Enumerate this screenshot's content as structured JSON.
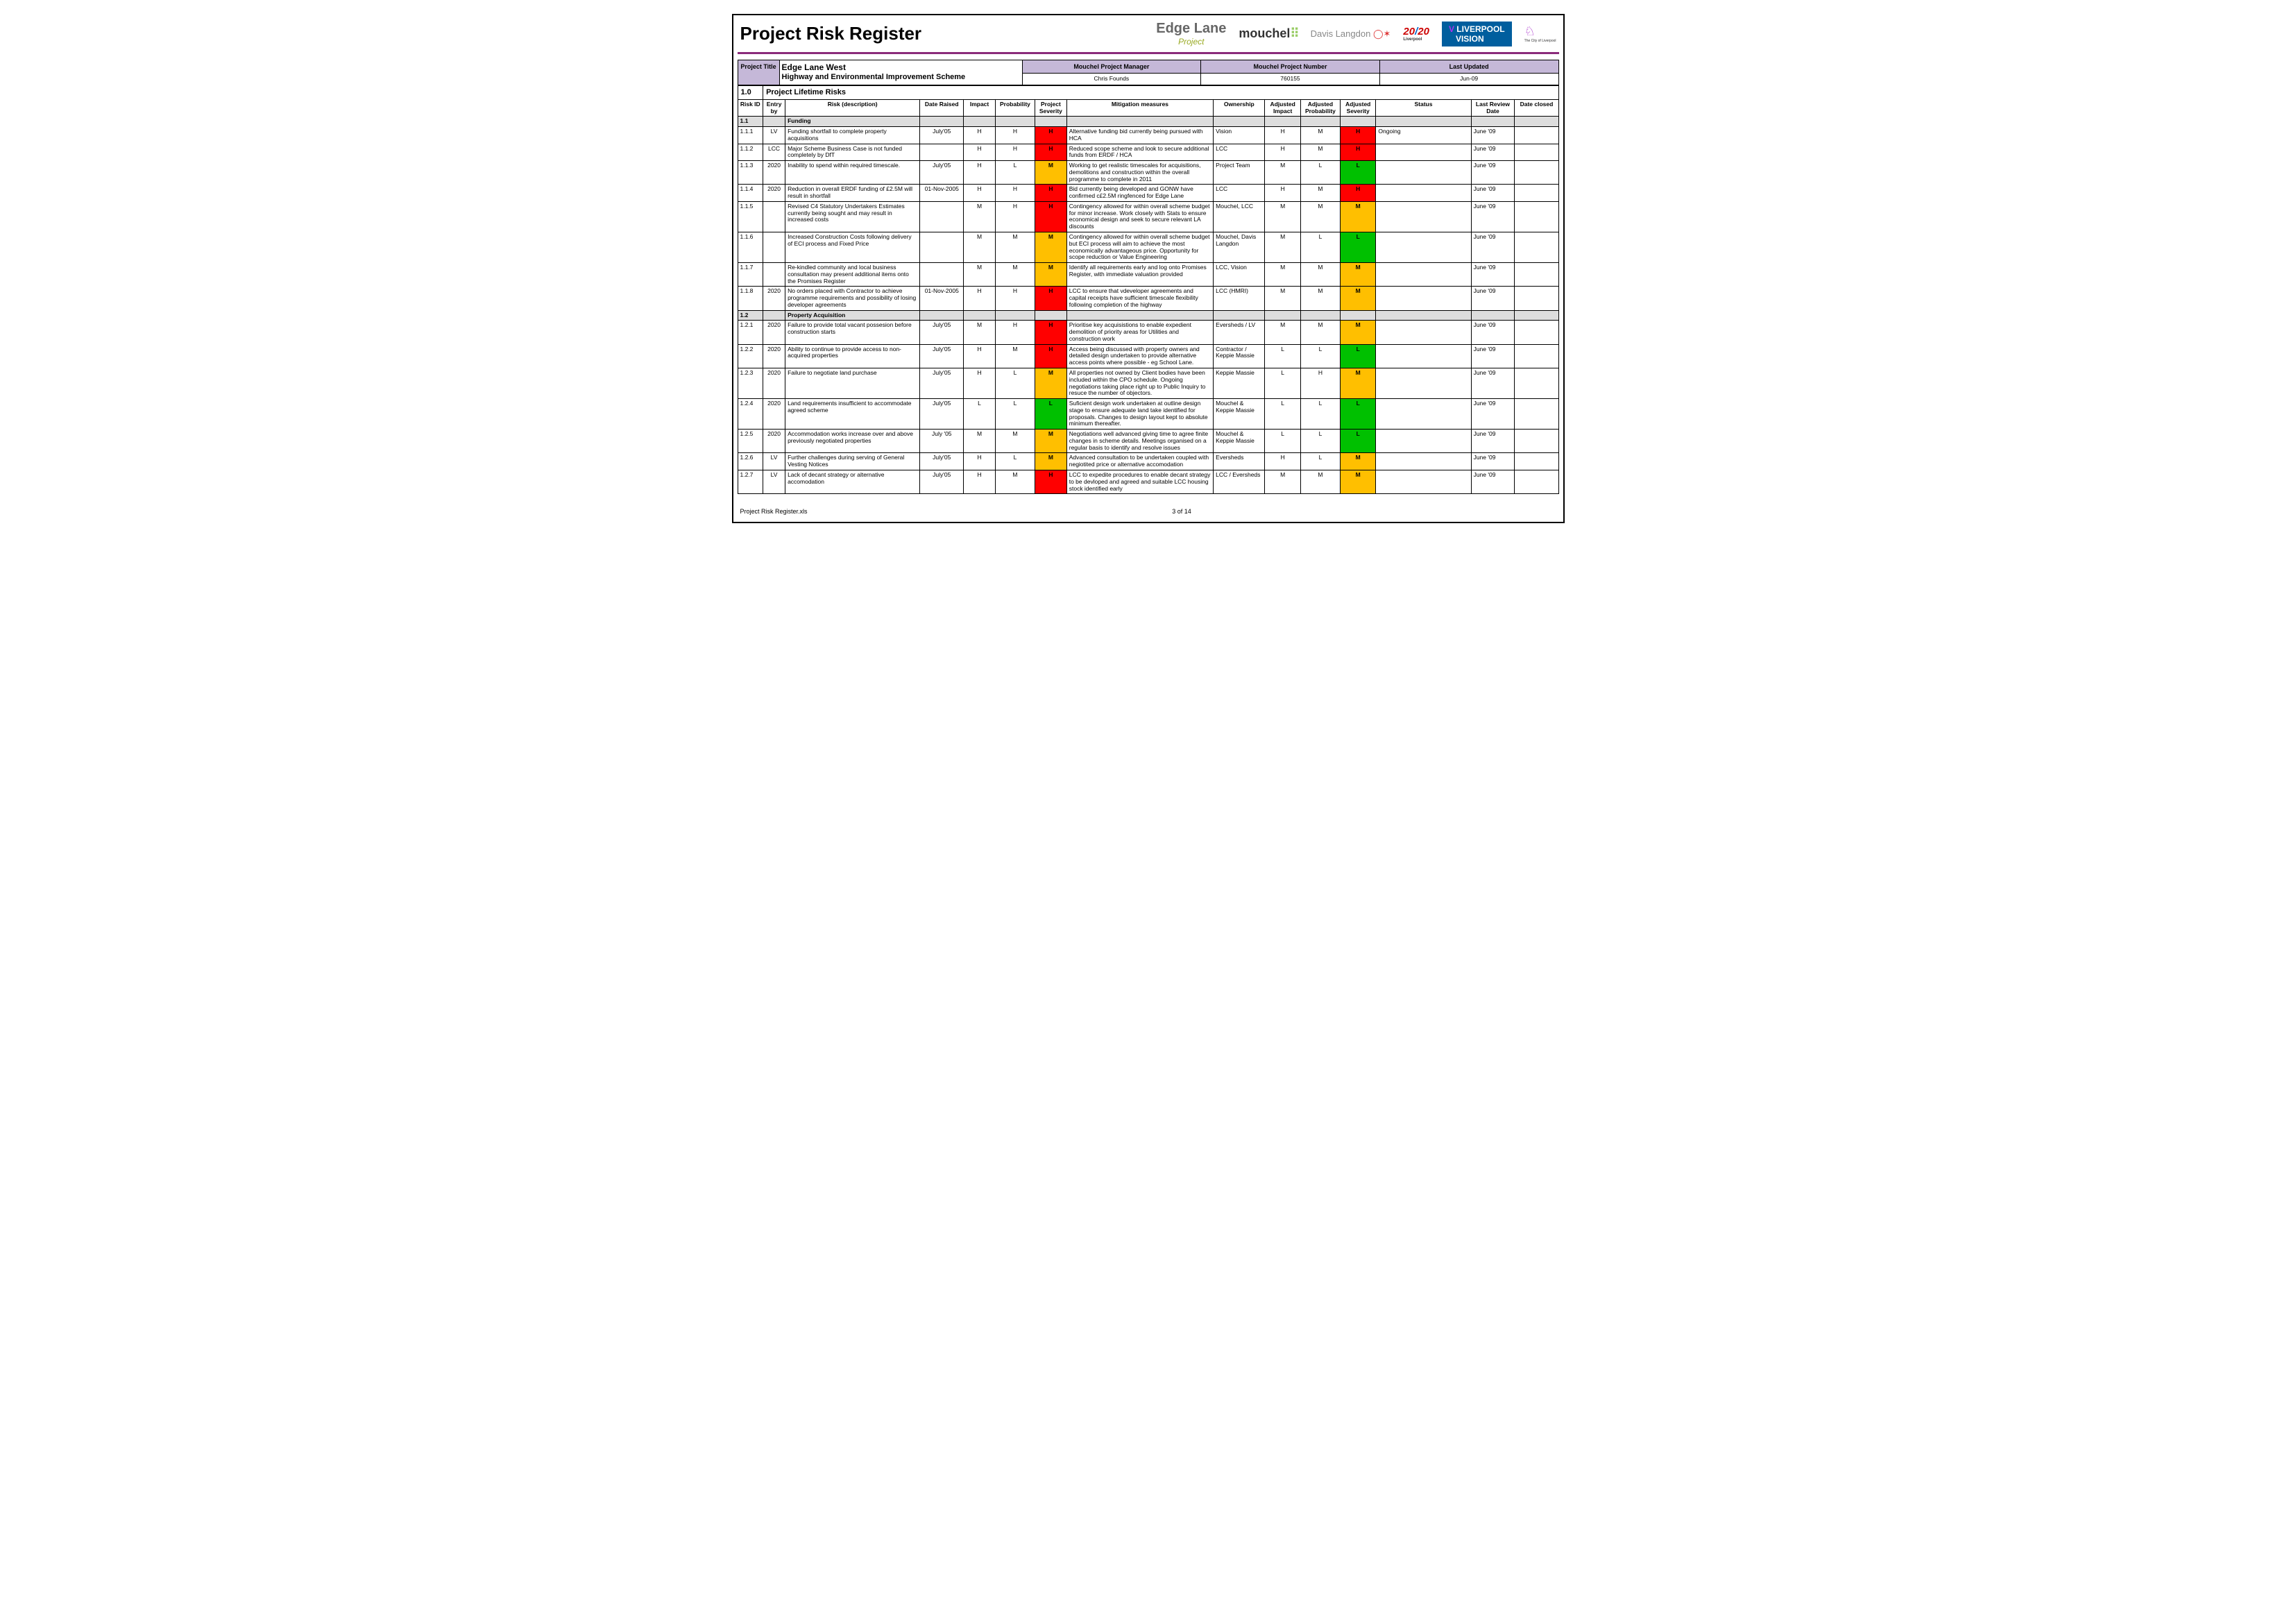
{
  "colors": {
    "H": "#ff0000",
    "M": "#ffbf00",
    "L": "#00c000",
    "header_band": "#c5b8d8",
    "category": "#dddddd"
  },
  "doc_title": "Project Risk Register",
  "logos": {
    "edge_t1": "Edge Lane",
    "edge_t2": "Project",
    "mouchel": "mouchel",
    "davis": "Davis Langdon",
    "yr": "20",
    "yr2": "20",
    "yr_sub": "Liverpool",
    "lv1": "LIVERPOOL",
    "lv2": "VISION",
    "city_sub": "The City of Liverpool"
  },
  "meta_headers": {
    "pt": "Project Title",
    "pm": "Mouchel Project Manager",
    "pn": "Mouchel Project Number",
    "lu": "Last Updated"
  },
  "meta": {
    "title1": "Edge Lane West",
    "title2": "Highway and Environmental Improvement Scheme",
    "pm": "Chris Founds",
    "pn": "760155",
    "lu": "Jun-09"
  },
  "section_num": "1.0",
  "section_title": "Project Lifetime Risks",
  "cols": [
    "Risk ID",
    "Entry by",
    "Risk (description)",
    "Date Raised",
    "Impact",
    "Probability",
    "Project Severity",
    "Mitigation measures",
    "Ownership",
    "Adjusted Impact",
    "Adjusted Probability",
    "Adjusted Severity",
    "Status",
    "Last Review Date",
    "Date closed"
  ],
  "rows": [
    {
      "cat": true,
      "id": "1.1",
      "desc": "Funding"
    },
    {
      "id": "1.1.1",
      "by": "LV",
      "desc": "Funding shortfall to complete property acquisitions",
      "date": "July'05",
      "imp": "H",
      "prob": "H",
      "psev": "H",
      "mit": "Alternative funding bid currently being pursued with HCA",
      "own": "Vision",
      "aimp": "H",
      "aprob": "M",
      "asev": "H",
      "stat": "Ongoing",
      "rev": "June '09",
      "clo": ""
    },
    {
      "id": "1.1.2",
      "by": "LCC",
      "desc": "Major Scheme Business Case is not funded completely by DfT",
      "date": "",
      "imp": "H",
      "prob": "H",
      "psev": "H",
      "mit": "Reduced scope scheme and look to secure additional funds from ERDF / HCA",
      "own": "LCC",
      "aimp": "H",
      "aprob": "M",
      "asev": "H",
      "stat": "",
      "rev": "June '09",
      "clo": ""
    },
    {
      "id": "1.1.3",
      "by": "2020",
      "desc": "Inability to spend within required timescale.",
      "date": "July'05",
      "imp": "H",
      "prob": "L",
      "psev": "M",
      "mit": "Working to get realistic timescales for acquisitions, demolitions and construction within the overall programme to complete in 2011",
      "own": "Project Team",
      "aimp": "M",
      "aprob": "L",
      "asev": "L",
      "stat": "",
      "rev": "June '09",
      "clo": ""
    },
    {
      "id": "1.1.4",
      "by": "2020",
      "desc": "Reduction in overall ERDF funding of £2.5M will result in shortfall",
      "date": "01-Nov-2005",
      "imp": "H",
      "prob": "H",
      "psev": "H",
      "mit": "Bid currently being developed and GONW have confirmed c£2.5M ringfenced for Edge Lane",
      "own": "LCC",
      "aimp": "H",
      "aprob": "M",
      "asev": "H",
      "stat": "",
      "rev": "June '09",
      "clo": ""
    },
    {
      "id": "1.1.5",
      "by": "",
      "desc": "Revised C4 Statutory Undertakers Estimates currently being sought and may result in increased costs",
      "date": "",
      "imp": "M",
      "prob": "H",
      "psev": "H",
      "mit": "Contingency allowed for within overall scheme budget for minor increase.  Work closely with Stats to ensure economical design and seek to secure relevant LA discounts",
      "own": "Mouchel, LCC",
      "aimp": "M",
      "aprob": "M",
      "asev": "M",
      "stat": "",
      "rev": "June '09",
      "clo": ""
    },
    {
      "id": "1.1.6",
      "by": "",
      "desc": "Increased Construction Costs following delivery of ECI process and Fixed Price",
      "date": "",
      "imp": "M",
      "prob": "M",
      "psev": "M",
      "mit": "Contingency allowed for within overall scheme budget but ECI process will aim to achieve the most economically advantageous price. Opportunity for scope reduction or Value Engineering",
      "own": "Mouchel, Davis Langdon",
      "aimp": "M",
      "aprob": "L",
      "asev": "L",
      "stat": "",
      "rev": "June '09",
      "clo": ""
    },
    {
      "id": "1.1.7",
      "by": "",
      "desc": "Re-kindled community and local business consultation may present additional items onto the Promises Register",
      "date": "",
      "imp": "M",
      "prob": "M",
      "psev": "M",
      "mit": "Identify all requirements early and log onto Promises Register, with immediate valuation provided",
      "own": "LCC, Vision",
      "aimp": "M",
      "aprob": "M",
      "asev": "M",
      "stat": "",
      "rev": "June '09",
      "clo": ""
    },
    {
      "id": "1.1.8",
      "by": "2020",
      "desc": "No orders placed with Contractor to achieve programme requirements and possibility of losing developer agreements",
      "date": "01-Nov-2005",
      "imp": "H",
      "prob": "H",
      "psev": "H",
      "mit": "LCC to ensure that vdeveloper agreements and capital receipts have sufficient timescale flexibility following completion of the highway",
      "own": "LCC (HMRI)",
      "aimp": "M",
      "aprob": "M",
      "asev": "M",
      "stat": "",
      "rev": "June '09",
      "clo": ""
    },
    {
      "cat": true,
      "id": "1.2",
      "desc": "Property Acquisition"
    },
    {
      "id": "1.2.1",
      "by": "2020",
      "desc": "Failure to provide total vacant possesion before construction starts",
      "date": "July'05",
      "imp": "M",
      "prob": "H",
      "psev": "H",
      "mit": "Prioritise key acquisistions to enable expedient demolition of priority areas for Utilities and construction work",
      "own": "Eversheds / LV",
      "aimp": "M",
      "aprob": "M",
      "asev": "M",
      "stat": "",
      "rev": "June '09",
      "clo": ""
    },
    {
      "id": "1.2.2",
      "by": "2020",
      "desc": "Ability to continue to provide access to non-acquired properties",
      "date": "July'05",
      "imp": "H",
      "prob": "M",
      "psev": "H",
      "mit": "Access being discussed with property owners and detailed design undertaken to provide alternative access points where possible - eg School Lane.",
      "own": "Contractor / Keppie Massie",
      "aimp": "L",
      "aprob": "L",
      "asev": "L",
      "stat": "",
      "rev": "June '09",
      "clo": ""
    },
    {
      "id": "1.2.3",
      "by": "2020",
      "desc": "Failure to negotiate land purchase",
      "date": "July'05",
      "imp": "H",
      "prob": "L",
      "psev": "M",
      "mit": "All properties not owned by Client bodies have been included within the CPO schedule. Ongoing negotiations taking place right up to Public Inquiry to resuce the number of objectors.",
      "own": "Keppie Massie",
      "aimp": "L",
      "aprob": "H",
      "asev": "M",
      "stat": "",
      "rev": "June '09",
      "clo": ""
    },
    {
      "id": "1.2.4",
      "by": "2020",
      "desc": "Land requirements insufficient to accommodate agreed scheme",
      "date": "July'05",
      "imp": "L",
      "prob": "L",
      "psev": "L",
      "mit": "Suficient design work undertaken at outline design stage to ensure adequate land take identified for proposals. Changes to design layout kept to absolute minimum thereafter.",
      "own": "Mouchel & Keppie Massie",
      "aimp": "L",
      "aprob": "L",
      "asev": "L",
      "stat": "",
      "rev": "June '09",
      "clo": ""
    },
    {
      "id": "1.2.5",
      "by": "2020",
      "desc": "Accommodation works increase over and above previously negotiated properties",
      "date": "July '05",
      "imp": "M",
      "prob": "M",
      "psev": "M",
      "mit": "Negotiations well advanced giving time to agree finite changes in scheme details. Meetings organised on a regular basis to identify and resolve issues",
      "own": "Mouchel & Keppie Massie",
      "aimp": "L",
      "aprob": "L",
      "asev": "L",
      "stat": "",
      "rev": "June '09",
      "clo": ""
    },
    {
      "id": "1.2.6",
      "by": "LV",
      "desc": "Further challenges during serving of General Vesting Notices",
      "date": "July'05",
      "imp": "H",
      "prob": "L",
      "psev": "M",
      "mit": "Advanced consultation to be undertaken coupled with negiotited price or alternative accomodation",
      "own": "Eversheds",
      "aimp": "H",
      "aprob": "L",
      "asev": "M",
      "stat": "",
      "rev": "June '09",
      "clo": ""
    },
    {
      "id": "1.2.7",
      "by": "LV",
      "desc": "Lack of decant strategy or alternative accomodation",
      "date": "July'05",
      "imp": "H",
      "prob": "M",
      "psev": "H",
      "mit": "LCC to expedite procedures to enable decant strategy to be devloped and agreed and suitable LCC housing stock identified early",
      "own": "LCC / Eversheds",
      "aimp": "M",
      "aprob": "M",
      "asev": "M",
      "stat": "",
      "rev": "June '09",
      "clo": ""
    }
  ],
  "footer": {
    "left": "Project Risk Register.xls",
    "center": "3 of 14"
  }
}
